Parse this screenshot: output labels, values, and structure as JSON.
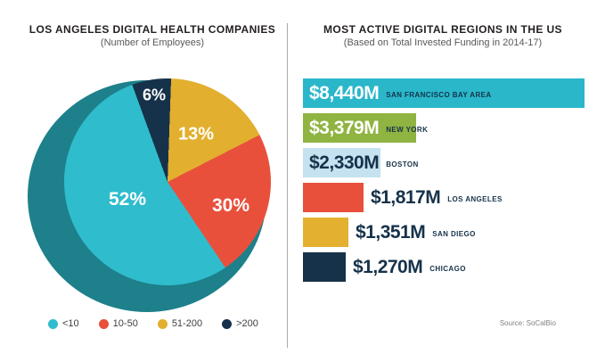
{
  "chart_data": [
    {
      "type": "pie",
      "title": "LOS ANGELES DIGITAL HEALTH COMPANIES",
      "subtitle": "(Number of Employees)",
      "labels": [
        "<10",
        "10-50",
        "51-200",
        ">200"
      ],
      "values": [
        52,
        30,
        13,
        6
      ],
      "value_labels": [
        "52%",
        "30%",
        "13%",
        "6%"
      ],
      "unit": "percent of companies",
      "colors": [
        "#2fbccd",
        "#e8503c",
        "#e2af2e",
        "#16324a"
      ],
      "depth_shadow_color": "#1d808b",
      "legend_position": "bottom",
      "style": "3d-tilted"
    },
    {
      "type": "bar",
      "orientation": "horizontal",
      "title": "MOST ACTIVE DIGITAL REGIONS IN THE US",
      "subtitle": "(Based on Total Invested Funding in 2014-17)",
      "categories": [
        "SAN FRANCISCO BAY AREA",
        "NEW YORK",
        "BOSTON",
        "LOS ANGELES",
        "SAN DIEGO",
        "CHICAGO"
      ],
      "values": [
        8440,
        3379,
        2330,
        1817,
        1351,
        1270
      ],
      "value_labels": [
        "$8,440M",
        "$3,379M",
        "$2,330M",
        "$1,817M",
        "$1,351M",
        "$1,270M"
      ],
      "unit": "millions USD",
      "colors": [
        "#29b7c9",
        "#8fb441",
        "#c5e2f0",
        "#e8503c",
        "#e3b02f",
        "#16324a"
      ],
      "xlim": [
        0,
        8440
      ],
      "grid": false,
      "source": "Source: SoCalBio"
    }
  ]
}
